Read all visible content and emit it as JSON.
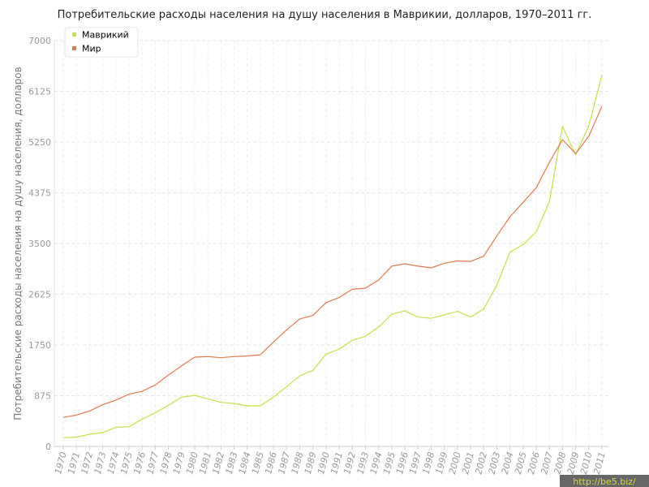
{
  "chart_data": {
    "type": "line",
    "title": "Потребительские расходы населения на душу населения в Маврикии, долларов, 1970–2011 гг.",
    "ylabel": "Потребительские расходы населения на душу населения, долларов",
    "xlabel": "",
    "ylim": [
      0,
      7000
    ],
    "yticks": [
      0,
      875,
      1750,
      2625,
      3500,
      4375,
      5250,
      6125,
      7000
    ],
    "grid": true,
    "legend_position": "top-left",
    "x": [
      1970,
      1971,
      1972,
      1973,
      1974,
      1975,
      1976,
      1977,
      1978,
      1979,
      1980,
      1981,
      1982,
      1983,
      1984,
      1985,
      1986,
      1987,
      1988,
      1989,
      1990,
      1991,
      1992,
      1993,
      1994,
      1995,
      1996,
      1997,
      1998,
      1999,
      2000,
      2001,
      2002,
      2003,
      2004,
      2005,
      2006,
      2007,
      2008,
      2009,
      2010,
      2011
    ],
    "series": [
      {
        "name": "Маврикий",
        "color": "#c5e045",
        "values": [
          150,
          160,
          210,
          240,
          330,
          340,
          470,
          580,
          710,
          850,
          880,
          820,
          760,
          740,
          700,
          700,
          850,
          1030,
          1220,
          1310,
          1590,
          1680,
          1830,
          1900,
          2060,
          2280,
          2340,
          2230,
          2210,
          2270,
          2330,
          2230,
          2370,
          2780,
          3350,
          3480,
          3700,
          4220,
          5520,
          5030,
          5530,
          6410
        ]
      },
      {
        "name": "Мир",
        "color": "#e07b4e",
        "values": [
          500,
          540,
          610,
          720,
          800,
          900,
          950,
          1060,
          1230,
          1390,
          1540,
          1550,
          1530,
          1550,
          1560,
          1580,
          1800,
          2010,
          2200,
          2260,
          2480,
          2570,
          2710,
          2730,
          2870,
          3110,
          3150,
          3110,
          3080,
          3160,
          3200,
          3190,
          3280,
          3630,
          3960,
          4210,
          4460,
          4900,
          5290,
          5050,
          5350,
          5870
        ]
      }
    ]
  },
  "watermark": {
    "text": "http://be5.biz/",
    "color": "#d8d83a",
    "background": "#666666"
  }
}
